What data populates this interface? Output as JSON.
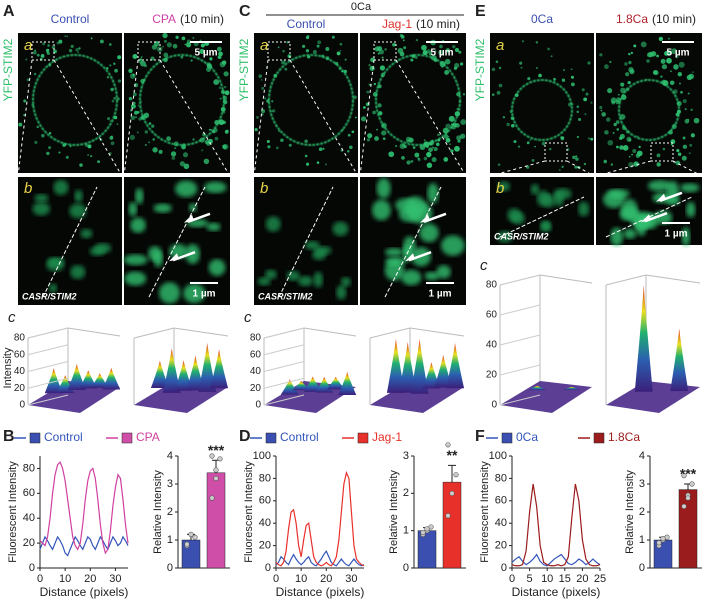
{
  "figure": {
    "columns": [
      {
        "label": "A",
        "conditions": [
          "Control",
          "CPA"
        ],
        "condition_colors": [
          "#3a4fb0",
          "#cf3fa5"
        ],
        "time": "(10 min)",
        "image_label_a": "a",
        "scale_a": "5 µm",
        "stain": "YFP-STIM2",
        "image_label_b": "b",
        "probe": "CASR/STIM2",
        "scale_b": "1 µm",
        "surface_label": "c",
        "surface_axis": "Intensity",
        "surface_ticks": [
          0,
          20,
          40,
          60,
          80
        ],
        "lower_label": "B"
      },
      {
        "label": "C",
        "group": "0Ca",
        "conditions": [
          "Control",
          "Jag-1"
        ],
        "condition_colors": [
          "#3a4fb0",
          "#e0302a"
        ],
        "time": "(10 min)",
        "image_label_a": "a",
        "scale_a": "5 µm",
        "stain": "YFP-STIM2",
        "image_label_b": "b",
        "probe": "CASR/STIM2",
        "scale_b": "1 µm",
        "surface_label": "c",
        "surface_ticks": [
          0,
          20,
          40,
          60,
          80
        ],
        "lower_label": "D"
      },
      {
        "label": "E",
        "conditions": [
          "0Ca",
          "1.8Ca"
        ],
        "condition_colors": [
          "#3a4fb0",
          "#b0202a"
        ],
        "time": "(10 min)",
        "image_label_a": "a",
        "scale_a": "5 µm",
        "stain": "YFP-STIM2",
        "image_label_b": "b",
        "probe": "CASR/STIM2",
        "scale_b": "1 µm",
        "surface_label": "c",
        "surface_ticks": [
          0,
          20,
          40,
          60,
          80
        ],
        "lower_label": "F"
      }
    ]
  },
  "chart_data": [
    {
      "type": "line",
      "ylabel": "Fluorescent Intensity",
      "xlabel": "Distance (pixels)",
      "x": [
        0,
        1,
        2,
        3,
        4,
        5,
        6,
        7,
        8,
        9,
        10,
        11,
        12,
        13,
        14,
        15,
        16,
        17,
        18,
        19,
        20,
        21,
        22,
        23,
        24,
        25,
        26,
        27,
        28,
        29,
        30,
        31,
        32,
        33,
        34,
        35
      ],
      "series": [
        {
          "name": "Control",
          "color": "#3355bb",
          "values": [
            15,
            20,
            25,
            22,
            18,
            15,
            20,
            25,
            22,
            18,
            12,
            10,
            15,
            20,
            25,
            22,
            18,
            15,
            20,
            25,
            23,
            18,
            15,
            20,
            25,
            22,
            18,
            15,
            20,
            25,
            22,
            18,
            20,
            25,
            22,
            18
          ]
        },
        {
          "name": "CPA",
          "color": "#d040a0",
          "values": [
            22,
            20,
            18,
            25,
            40,
            60,
            75,
            83,
            85,
            80,
            70,
            55,
            40,
            25,
            18,
            15,
            20,
            35,
            55,
            70,
            78,
            80,
            72,
            55,
            35,
            20,
            12,
            15,
            30,
            50,
            65,
            75,
            72,
            55,
            35,
            20
          ]
        }
      ],
      "xlim": [
        0,
        35
      ],
      "ylim": [
        0,
        90
      ],
      "xticks": [
        0,
        10,
        20,
        30
      ],
      "yticks": [
        0,
        20,
        40,
        60,
        80
      ]
    },
    {
      "type": "bar",
      "ylabel": "Relative Intensity",
      "values": [
        1.0,
        3.4
      ],
      "errors": [
        0.2,
        0.45
      ],
      "colors": [
        "#3a4fb0",
        "#cf4fa8"
      ],
      "points": [
        [
          0.8,
          1.2,
          1.1,
          0.85
        ],
        [
          2.5,
          3.2,
          3.9,
          4.0,
          3.5
        ]
      ],
      "annotation": "***",
      "ylim": [
        0,
        4
      ],
      "yticks": [
        0,
        1,
        2,
        3,
        4
      ]
    },
    {
      "type": "line",
      "ylabel": "Fluorescent Intensity",
      "xlabel": "Distance (pixels)",
      "x": [
        0,
        1,
        2,
        3,
        4,
        5,
        6,
        7,
        8,
        9,
        10,
        11,
        12,
        13,
        14,
        15,
        16,
        17,
        18,
        19,
        20,
        21,
        22,
        23,
        24,
        25,
        26,
        27,
        28,
        29,
        30,
        31,
        32,
        33,
        34,
        35
      ],
      "series": [
        {
          "name": "Control",
          "color": "#3355bb",
          "values": [
            3,
            5,
            10,
            8,
            5,
            3,
            8,
            12,
            8,
            5,
            3,
            5,
            8,
            10,
            5,
            3,
            2,
            5,
            8,
            12,
            15,
            10,
            5,
            3,
            2,
            5,
            8,
            5,
            3,
            2,
            5,
            8,
            5,
            3,
            2,
            3
          ]
        },
        {
          "name": "Jag-1",
          "color": "#e8302a",
          "values": [
            5,
            3,
            2,
            5,
            15,
            35,
            50,
            52,
            40,
            20,
            10,
            25,
            38,
            40,
            25,
            10,
            5,
            3,
            2,
            3,
            5,
            3,
            2,
            5,
            10,
            25,
            50,
            75,
            85,
            80,
            50,
            20,
            8,
            5,
            3,
            2
          ]
        }
      ],
      "xlim": [
        0,
        35
      ],
      "ylim": [
        0,
        100
      ],
      "xticks": [
        0,
        10,
        20,
        30
      ],
      "yticks": [
        0,
        20,
        40,
        60,
        80,
        100
      ]
    },
    {
      "type": "bar",
      "ylabel": "Relative Intensity",
      "values": [
        1.0,
        2.3
      ],
      "errors": [
        0.08,
        0.45
      ],
      "colors": [
        "#3a4fb0",
        "#e8302a"
      ],
      "points": [
        [
          0.9,
          1.0,
          1.1,
          0.95,
          1.05
        ],
        [
          1.4,
          2.0,
          2.5,
          3.3
        ]
      ],
      "annotation": "**",
      "ylim": [
        0,
        3
      ],
      "yticks": [
        0,
        1,
        2,
        3
      ]
    },
    {
      "type": "line",
      "ylabel": "Fluorescent Intensity",
      "xlabel": "Distance (pixels)",
      "x": [
        0,
        1,
        2,
        3,
        4,
        5,
        6,
        7,
        8,
        9,
        10,
        11,
        12,
        13,
        14,
        15,
        16,
        17,
        18,
        19,
        20,
        21,
        22,
        23,
        24,
        25
      ],
      "series": [
        {
          "name": "0Ca",
          "color": "#3355bb",
          "values": [
            5,
            8,
            10,
            6,
            3,
            5,
            8,
            12,
            6,
            3,
            2,
            5,
            8,
            10,
            12,
            8,
            4,
            3,
            5,
            8,
            6,
            3,
            5,
            8,
            5,
            3
          ]
        },
        {
          "name": "1.8Ca",
          "color": "#9b1c1c",
          "values": [
            3,
            2,
            2,
            3,
            15,
            50,
            75,
            55,
            20,
            5,
            3,
            2,
            2,
            3,
            2,
            3,
            10,
            45,
            75,
            60,
            25,
            8,
            3,
            2,
            2,
            3
          ]
        }
      ],
      "xlim": [
        0,
        25
      ],
      "ylim": [
        0,
        100
      ],
      "xticks": [
        0,
        5,
        10,
        15,
        20,
        25
      ],
      "yticks": [
        0,
        20,
        40,
        60,
        80,
        100
      ]
    },
    {
      "type": "bar",
      "ylabel": "Relative Intensity",
      "values": [
        1.0,
        2.8
      ],
      "errors": [
        0.1,
        0.2
      ],
      "colors": [
        "#3a4fb0",
        "#9b1c1c"
      ],
      "points": [
        [
          0.8,
          1.0,
          1.1,
          0.9,
          1.05
        ],
        [
          2.2,
          2.6,
          3.0,
          3.3,
          2.5
        ]
      ],
      "annotation": "***",
      "ylim": [
        0,
        4
      ],
      "yticks": [
        0,
        1,
        2,
        3,
        4
      ]
    }
  ]
}
